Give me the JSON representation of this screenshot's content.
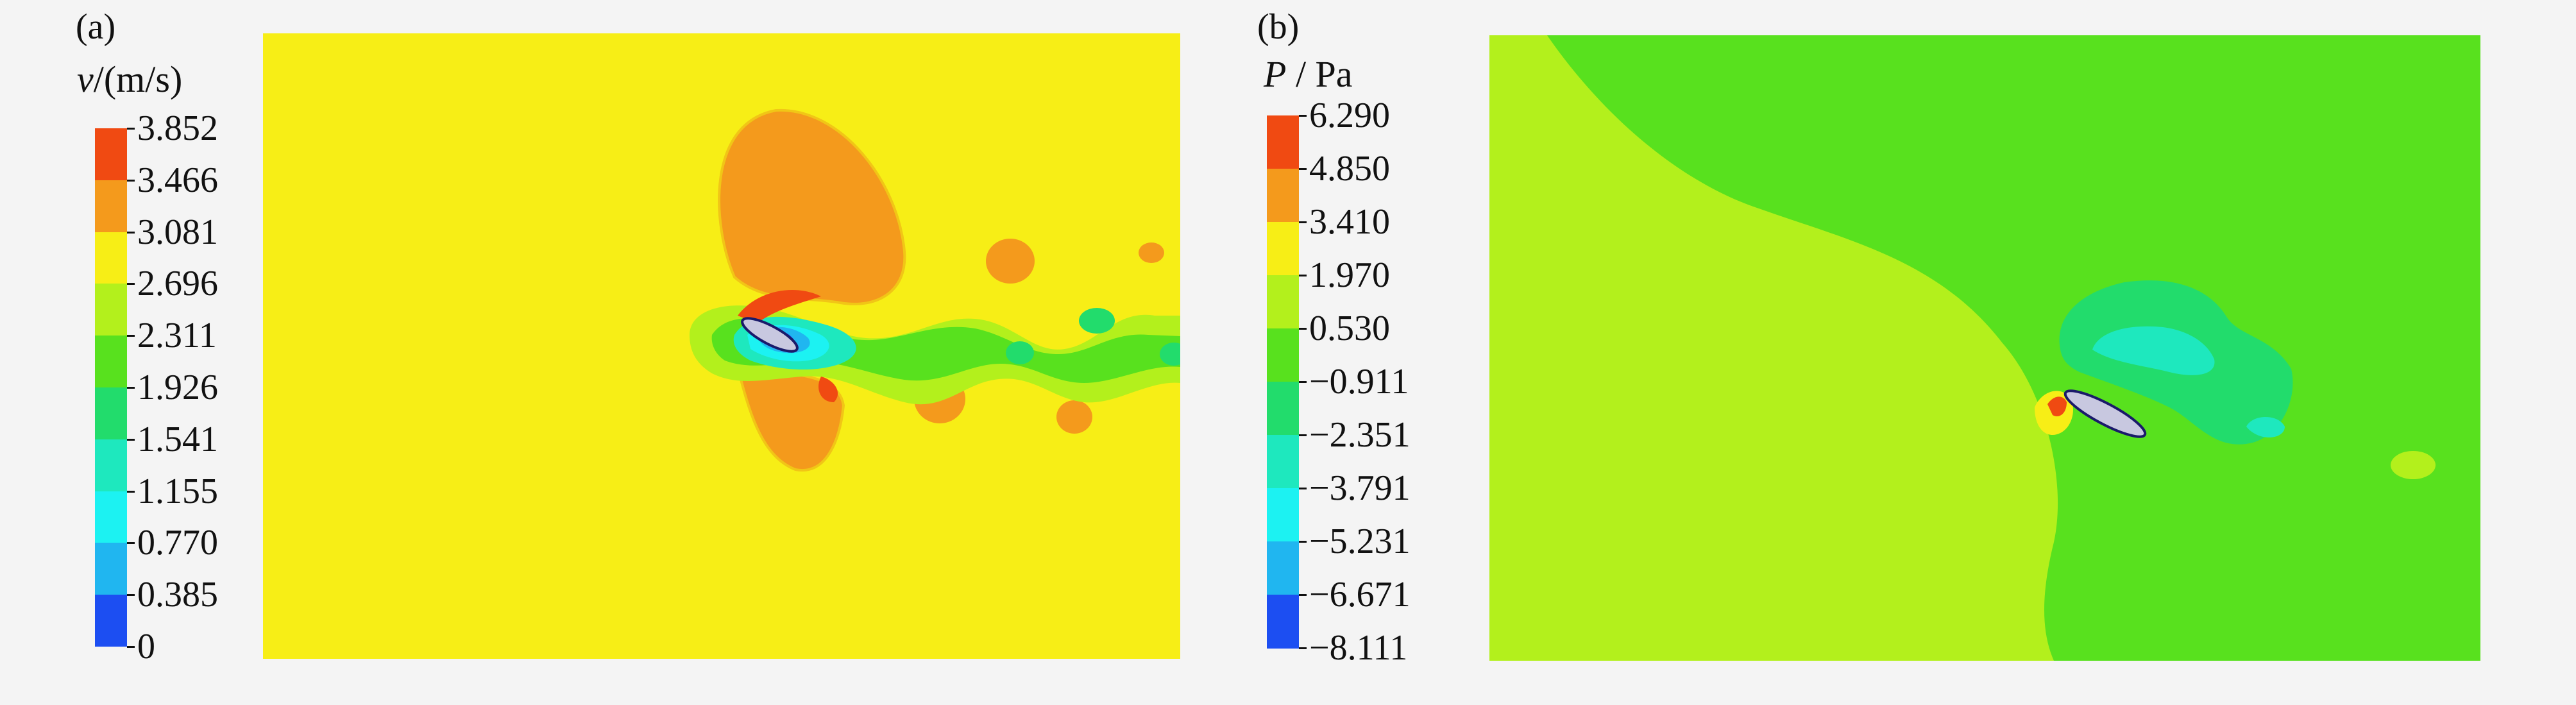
{
  "panels": [
    {
      "letter": "(a)",
      "colorbar": {
        "symbol": "v",
        "unit": "/(m/s)",
        "labels": [
          "3.852",
          "3.466",
          "3.081",
          "2.696",
          "2.311",
          "1.926",
          "1.541",
          "1.155",
          "0.770",
          "0.385",
          "0"
        ],
        "colors": [
          "#f04a12",
          "#f49a1c",
          "#f7ee16",
          "#b3f01c",
          "#58e11e",
          "#22dc6c",
          "#1ee8be",
          "#1cf2f2",
          "#20b6f0",
          "#1c4ef2"
        ]
      }
    },
    {
      "letter": "(b)",
      "colorbar": {
        "symbol": "P",
        "unit": " / Pa",
        "labels": [
          "6.290",
          "4.850",
          "3.410",
          "1.970",
          "0.530",
          "−0.911",
          "−2.351",
          "−3.791",
          "−5.231",
          "−6.671",
          "−8.111"
        ],
        "colors": [
          "#f04a12",
          "#f49a1c",
          "#f7ee16",
          "#b3f01c",
          "#58e11e",
          "#22dc6c",
          "#1ee8be",
          "#1cf2f2",
          "#20b6f0",
          "#1c4ef2"
        ]
      }
    }
  ],
  "chart_data": [
    {
      "type": "heatmap",
      "title": "",
      "colorbar_label": "v/(m/s)",
      "colorbar_range": [
        0,
        3.852
      ],
      "colorbar_levels": [
        0,
        0.385,
        0.77,
        1.155,
        1.541,
        1.926,
        2.311,
        2.696,
        3.081,
        3.466,
        3.852
      ],
      "background_level_band": [
        2.696,
        3.081
      ]
    },
    {
      "type": "heatmap",
      "title": "",
      "colorbar_label": "P / Pa",
      "colorbar_range": [
        -8.111,
        6.29
      ],
      "colorbar_levels": [
        6.29,
        4.85,
        3.41,
        1.97,
        0.53,
        -0.911,
        -2.351,
        -3.791,
        -5.231,
        -6.671,
        -8.111
      ]
    }
  ]
}
